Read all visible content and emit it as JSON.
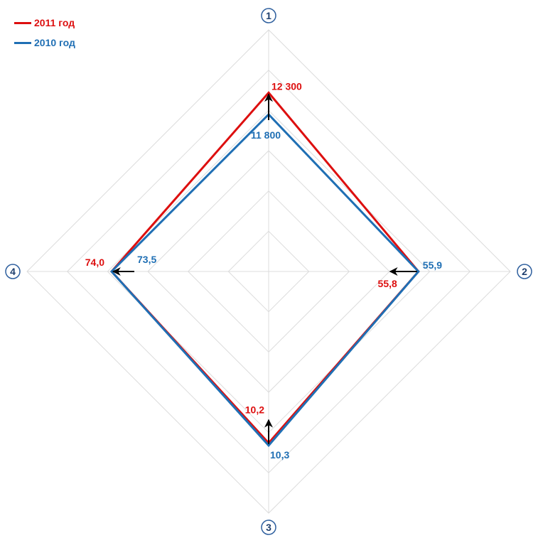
{
  "legend": {
    "items": [
      {
        "label": "2011 год",
        "color": "#dd0f0f"
      },
      {
        "label": "2010 год",
        "color": "#1f6fb4"
      }
    ]
  },
  "colors": {
    "grid": "#dcdcdc",
    "axis_marker": "#2e5f9e",
    "arrow": "#000000"
  },
  "chart_data": {
    "type": "radar",
    "axes": [
      "1",
      "2",
      "3",
      "4"
    ],
    "grid": true,
    "grid_levels": 6,
    "series": [
      {
        "name": "2011 год",
        "color": "#dd0f0f",
        "labels": [
          "12 300",
          "55,8",
          "10,2",
          "74,0"
        ],
        "values": [
          12300,
          55.8,
          10.2,
          74.0
        ],
        "radius_fraction": [
          0.74,
          0.62,
          0.71,
          0.65
        ]
      },
      {
        "name": "2010 год",
        "color": "#1f6fb4",
        "labels": [
          "11 800",
          "55,9",
          "10,3",
          "73,5"
        ],
        "values": [
          11800,
          55.9,
          10.3,
          73.5
        ],
        "radius_fraction": [
          0.65,
          0.62,
          0.72,
          0.65
        ]
      }
    ],
    "change_arrows": [
      {
        "axis": "1",
        "direction": "up"
      },
      {
        "axis": "2",
        "direction": "left"
      },
      {
        "axis": "3",
        "direction": "up"
      },
      {
        "axis": "4",
        "direction": "right"
      }
    ]
  }
}
